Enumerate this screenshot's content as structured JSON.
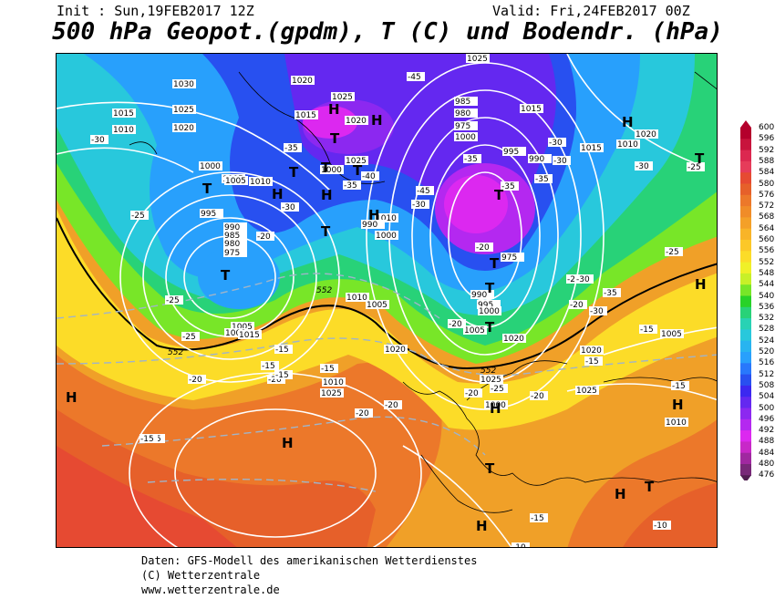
{
  "header": {
    "init": "Init : Sun,19FEB2017 12Z",
    "valid": "Valid: Fri,24FEB2017 00Z",
    "title": "500 hPa Geopot.(gpdm), T (C) und Bodendr. (hPa)"
  },
  "footer": {
    "line1": "Daten: GFS-Modell des amerikanischen Wetterdienstes",
    "line2": "(C) Wetterzentrale",
    "line3": "www.wetterzentrale.de"
  },
  "legend": {
    "values": [
      600,
      596,
      592,
      588,
      584,
      580,
      576,
      572,
      568,
      564,
      560,
      556,
      552,
      548,
      544,
      540,
      536,
      532,
      528,
      524,
      520,
      516,
      512,
      508,
      504,
      500,
      496,
      492,
      488,
      484,
      480,
      476
    ],
    "colors": [
      "#b4002c",
      "#c8143c",
      "#dc2850",
      "#e63c5a",
      "#e64a32",
      "#e6602a",
      "#ec782a",
      "#f08c28",
      "#f4a028",
      "#f8b428",
      "#fcc828",
      "#fcdc28",
      "#f0f028",
      "#c8f028",
      "#78e628",
      "#28d228",
      "#28d278",
      "#28d2b4",
      "#28c8dc",
      "#28b4f0",
      "#28a0fc",
      "#2878fc",
      "#2850f0",
      "#3c28f0",
      "#6428f0",
      "#8c28f0",
      "#b428f0",
      "#dc28f0",
      "#c828c8",
      "#a028a0",
      "#782878",
      "#501e50"
    ]
  },
  "map_labels": {
    "isobars": [
      "1030",
      "1025",
      "1015",
      "1010",
      "1020",
      "1020",
      "1025",
      "1015",
      "1020",
      "1000",
      "1005",
      "1025",
      "1000",
      "1005",
      "995",
      "990",
      "985",
      "980",
      "975",
      "1010",
      "1005",
      "1000",
      "1015",
      "1010",
      "990",
      "985",
      "980",
      "975",
      "1000",
      "995",
      "990",
      "1010",
      "1005",
      "975",
      "990",
      "995",
      "1000",
      "1005",
      "1015",
      "1020",
      "1025",
      "1015",
      "1010",
      "1020",
      "1010",
      "1025",
      "1020",
      "1025",
      "1020",
      "1025",
      "1005",
      "1010",
      "1000",
      "1000"
    ],
    "temps": [
      "-30",
      "-35",
      "-40",
      "-45",
      "-45",
      "-35",
      "-30",
      "-35",
      "-35",
      "-30",
      "-35",
      "-30",
      "-30",
      "-30",
      "-25",
      "-25",
      "-20",
      "-20",
      "-25",
      "-25",
      "-25",
      "-20",
      "-15",
      "-20",
      "-15",
      "-15",
      "-20",
      "-15",
      "-20",
      "-15",
      "-15",
      "-20",
      "-20",
      "-20",
      "-15",
      "-10",
      "-15",
      "-10",
      "-15",
      "-15",
      "-25",
      "-30",
      "-30",
      "-35",
      "-20",
      "-25"
    ],
    "contour_552": "552",
    "high": "H",
    "low": "T"
  }
}
